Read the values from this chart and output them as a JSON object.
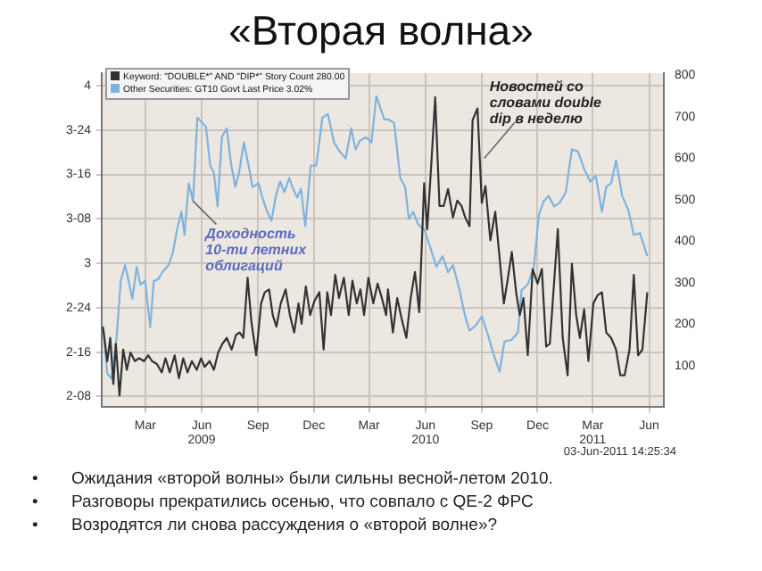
{
  "chart_data": {
    "type": "line",
    "title": "«Вторая волна»",
    "annotations": [
      {
        "text": "Доходность 10-ти летних облигаций",
        "x": "2009-05-18",
        "y": 3.35
      },
      {
        "text": "Новостей со словами double dip в неделю",
        "x": "2010-09-05",
        "y": 3.59
      },
      "03-Jun-2011 14:25:34",
      "• Ожидания «второй волны» были сильны весной-летом 2010.",
      "• Разговоры прекратились осенью, что совпало с QE-2 ФРС",
      "• Возродятся ли снова рассуждения о «второй волне»?"
    ],
    "xlim": [
      "2008-12-20",
      "2011-06-25"
    ],
    "xticks": [
      {
        "value": "2009-03-01",
        "label": "Mar"
      },
      {
        "value": "2009-06-01",
        "label": "Jun\n2009"
      },
      {
        "value": "2009-09-01",
        "label": "Sep"
      },
      {
        "value": "2009-12-01",
        "label": "Dec"
      },
      {
        "value": "2010-03-01",
        "label": "Mar"
      },
      {
        "value": "2010-06-01",
        "label": "Jun\n2010"
      },
      {
        "value": "2010-09-01",
        "label": "Sep"
      },
      {
        "value": "2010-12-01",
        "label": "Dec"
      },
      {
        "value": "2011-03-01",
        "label": "Mar\n2011"
      },
      {
        "value": "2011-06-01",
        "label": "Jun"
      }
    ],
    "ylim": [
      2.19,
      4.07
    ],
    "yticks": [
      {
        "value": 2.25,
        "label": "2-08"
      },
      {
        "value": 2.5,
        "label": "2-16"
      },
      {
        "value": 2.75,
        "label": "2-24"
      },
      3,
      {
        "value": 3.25,
        "label": "3-08"
      },
      {
        "value": 3.5,
        "label": "3-16"
      },
      {
        "value": 3.75,
        "label": "3-24"
      },
      4
    ],
    "y2lim": [
      0,
      805
    ],
    "y2ticks": [
      100,
      200,
      300,
      400,
      500,
      600,
      700,
      800
    ],
    "grid": true,
    "legend": "top left",
    "series": [
      {
        "name": "Keyword: \"DOUBLE*\" AND \"DIP*\" Story Count 280.00",
        "color": "#333333",
        "axis": "y2",
        "x": [
          "2008-12-22",
          "2008-12-29",
          "2009-01-03",
          "2009-01-08",
          "2009-01-12",
          "2009-01-18",
          "2009-01-24",
          "2009-01-30",
          "2009-02-05",
          "2009-02-12",
          "2009-02-19",
          "2009-02-27",
          "2009-03-06",
          "2009-03-12",
          "2009-03-20",
          "2009-03-28",
          "2009-04-03",
          "2009-04-10",
          "2009-04-18",
          "2009-04-25",
          "2009-05-02",
          "2009-05-09",
          "2009-05-16",
          "2009-05-24",
          "2009-05-31",
          "2009-06-06",
          "2009-06-14",
          "2009-06-21",
          "2009-06-28",
          "2009-07-05",
          "2009-07-12",
          "2009-07-20",
          "2009-07-27",
          "2009-08-02",
          "2009-08-08",
          "2009-08-15",
          "2009-08-21",
          "2009-08-29",
          "2009-09-06",
          "2009-09-12",
          "2009-09-19",
          "2009-09-25",
          "2009-10-01",
          "2009-10-08",
          "2009-10-16",
          "2009-10-23",
          "2009-10-30",
          "2009-11-06",
          "2009-11-11",
          "2009-11-18",
          "2009-11-25",
          "2009-12-02",
          "2009-12-10",
          "2009-12-17",
          "2009-12-23",
          "2009-12-29",
          "2010-01-05",
          "2010-01-11",
          "2010-01-19",
          "2010-01-27",
          "2010-02-02",
          "2010-02-09",
          "2010-02-15",
          "2010-02-21",
          "2010-02-28",
          "2010-03-08",
          "2010-03-15",
          "2010-03-22",
          "2010-03-29",
          "2010-04-01",
          "2010-04-09",
          "2010-04-16",
          "2010-04-23",
          "2010-05-01",
          "2010-05-08",
          "2010-05-15",
          "2010-05-22",
          "2010-05-30",
          "2010-06-04",
          "2010-06-11",
          "2010-06-17",
          "2010-06-24",
          "2010-07-01",
          "2010-07-08",
          "2010-07-16",
          "2010-07-23",
          "2010-07-30",
          "2010-08-05",
          "2010-08-12",
          "2010-08-17",
          "2010-08-25",
          "2010-09-01",
          "2010-09-07",
          "2010-09-15",
          "2010-09-23",
          "2010-09-30",
          "2010-10-07",
          "2010-10-13",
          "2010-10-20",
          "2010-10-27",
          "2010-11-02",
          "2010-11-08",
          "2010-11-15",
          "2010-11-23",
          "2010-12-01",
          "2010-12-08",
          "2010-12-15",
          "2010-12-21",
          "2011-01-03",
          "2011-01-11",
          "2011-01-19",
          "2011-01-26",
          "2011-02-02",
          "2011-02-08",
          "2011-02-15",
          "2011-02-22",
          "2011-03-02",
          "2011-03-09",
          "2011-03-16",
          "2011-03-23",
          "2011-03-31",
          "2011-04-08",
          "2011-04-15",
          "2011-04-22",
          "2011-04-30",
          "2011-05-07",
          "2011-05-14",
          "2011-05-21",
          "2011-05-29"
        ],
        "values": [
          194,
          111,
          167,
          56,
          153,
          28,
          139,
          90,
          132,
          111,
          118,
          111,
          125,
          111,
          104,
          84,
          118,
          84,
          125,
          70,
          118,
          84,
          111,
          90,
          118,
          97,
          111,
          90,
          132,
          153,
          167,
          139,
          174,
          180,
          167,
          312,
          208,
          125,
          250,
          277,
          284,
          222,
          194,
          250,
          284,
          222,
          180,
          250,
          201,
          291,
          222,
          256,
          277,
          139,
          277,
          222,
          319,
          263,
          312,
          222,
          305,
          250,
          284,
          222,
          312,
          250,
          298,
          263,
          222,
          284,
          180,
          263,
          215,
          167,
          263,
          326,
          229,
          540,
          429,
          595,
          747,
          485,
          485,
          526,
          457,
          498,
          485,
          457,
          436,
          692,
          720,
          492,
          533,
          402,
          471,
          360,
          250,
          305,
          374,
          277,
          222,
          263,
          125,
          333,
          298,
          333,
          146,
          153,
          429,
          167,
          77,
          346,
          222,
          167,
          236,
          111,
          250,
          270,
          277,
          180,
          167,
          139,
          77,
          77,
          139,
          319,
          125,
          139,
          277
        ]
      },
      {
        "name": "Other Securities: GT10 Govt Last Price 3.02%",
        "color": "#7eb3df",
        "x": [
          "2008-12-23",
          "2008-12-29",
          "2009-01-05",
          "2009-01-13",
          "2009-01-20",
          "2009-01-27",
          "2009-02-02",
          "2009-02-08",
          "2009-02-15",
          "2009-02-21",
          "2009-03-01",
          "2009-03-09",
          "2009-03-15",
          "2009-03-22",
          "2009-03-29",
          "2009-04-08",
          "2009-04-15",
          "2009-04-22",
          "2009-04-29",
          "2009-05-04",
          "2009-05-11",
          "2009-05-18",
          "2009-05-25",
          "2009-06-02",
          "2009-06-08",
          "2009-06-15",
          "2009-06-21",
          "2009-06-27",
          "2009-07-04",
          "2009-07-12",
          "2009-07-19",
          "2009-07-26",
          "2009-08-01",
          "2009-08-09",
          "2009-08-16",
          "2009-08-23",
          "2009-09-02",
          "2009-09-08",
          "2009-09-16",
          "2009-09-23",
          "2009-09-30",
          "2009-10-07",
          "2009-10-14",
          "2009-10-22",
          "2009-10-28",
          "2009-11-04",
          "2009-11-10",
          "2009-11-17",
          "2009-11-26",
          "2009-12-05",
          "2009-12-15",
          "2009-12-24",
          "2010-01-03",
          "2010-01-12",
          "2010-01-22",
          "2010-01-31",
          "2010-02-07",
          "2010-02-14",
          "2010-02-24",
          "2010-03-05",
          "2010-03-13",
          "2010-03-20",
          "2010-03-26",
          "2010-04-01",
          "2010-04-11",
          "2010-04-21",
          "2010-04-29",
          "2010-05-05",
          "2010-05-12",
          "2010-05-20",
          "2010-05-30",
          "2010-06-09",
          "2010-06-19",
          "2010-06-29",
          "2010-07-08",
          "2010-07-16",
          "2010-07-26",
          "2010-08-05",
          "2010-08-12",
          "2010-08-22",
          "2010-09-01",
          "2010-09-10",
          "2010-09-20",
          "2010-09-30",
          "2010-10-08",
          "2010-10-20",
          "2010-10-30",
          "2010-11-05",
          "2010-11-15",
          "2010-11-25",
          "2010-12-03",
          "2010-12-11",
          "2010-12-19",
          "2010-12-28",
          "2011-01-06",
          "2011-01-16",
          "2011-01-26",
          "2011-02-05",
          "2011-02-15",
          "2011-02-25",
          "2011-03-06",
          "2011-03-16",
          "2011-03-23",
          "2011-03-31",
          "2011-04-08",
          "2011-04-18",
          "2011-04-28",
          "2011-05-07",
          "2011-05-17",
          "2011-05-29"
        ],
        "values": [
          2.62,
          2.38,
          2.35,
          2.57,
          2.9,
          2.99,
          2.9,
          2.8,
          2.98,
          2.88,
          2.9,
          2.64,
          2.9,
          2.91,
          2.95,
          2.99,
          3.06,
          3.19,
          3.29,
          3.16,
          3.45,
          3.35,
          3.82,
          3.79,
          3.77,
          3.55,
          3.51,
          3.32,
          3.71,
          3.76,
          3.56,
          3.43,
          3.51,
          3.68,
          3.56,
          3.43,
          3.45,
          3.37,
          3.29,
          3.24,
          3.38,
          3.46,
          3.4,
          3.48,
          3.42,
          3.37,
          3.42,
          3.21,
          3.55,
          3.55,
          3.82,
          3.84,
          3.68,
          3.63,
          3.59,
          3.76,
          3.64,
          3.69,
          3.71,
          3.68,
          3.94,
          3.87,
          3.81,
          3.81,
          3.79,
          3.48,
          3.43,
          3.25,
          3.29,
          3.22,
          3.19,
          3.09,
          2.98,
          3.04,
          2.95,
          2.99,
          2.86,
          2.7,
          2.62,
          2.65,
          2.7,
          2.61,
          2.49,
          2.39,
          2.56,
          2.57,
          2.61,
          2.85,
          2.88,
          2.98,
          3.27,
          3.35,
          3.38,
          3.32,
          3.34,
          3.4,
          3.64,
          3.63,
          3.53,
          3.46,
          3.49,
          3.29,
          3.43,
          3.45,
          3.58,
          3.38,
          3.3,
          3.16,
          3.17,
          3.04
        ]
      }
    ]
  }
}
